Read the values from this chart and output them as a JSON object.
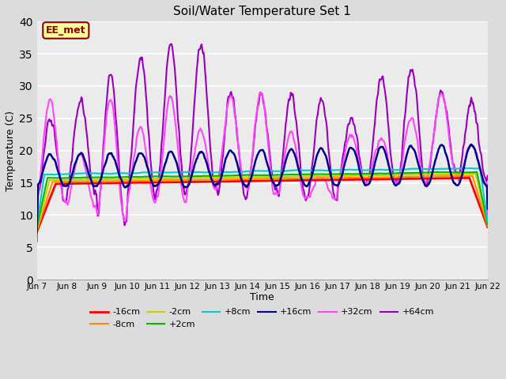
{
  "title": "Soil/Water Temperature Set 1",
  "xlabel": "Time",
  "ylabel": "Temperature (C)",
  "ylim": [
    0,
    40
  ],
  "yticks": [
    0,
    5,
    10,
    15,
    20,
    25,
    30,
    35,
    40
  ],
  "x_labels": [
    "Jun 7",
    "Jun 8",
    "Jun 9",
    "Jun 10",
    "Jun 11",
    "Jun 12",
    "Jun 13",
    "Jun 14",
    "Jun 15",
    "Jun 16",
    "Jun 17",
    "Jun 18",
    "Jun 19",
    "Jun 20",
    "Jun 21",
    "Jun 22"
  ],
  "annotation": "EE_met",
  "annotation_color": "#8B0000",
  "annotation_bg": "#FFFF99",
  "background_color": "#DCDCDC",
  "plot_bg": "#EBEBEB",
  "colors": {
    "-16cm": "#FF0000",
    "-8cm": "#FF8C00",
    "-2cm": "#CCCC00",
    "+2cm": "#00BB00",
    "+8cm": "#00CCCC",
    "+16cm": "#00008B",
    "+32cm": "#FF44FF",
    "+64cm": "#9900BB"
  },
  "figsize": [
    6.4,
    4.8
  ],
  "dpi": 100
}
